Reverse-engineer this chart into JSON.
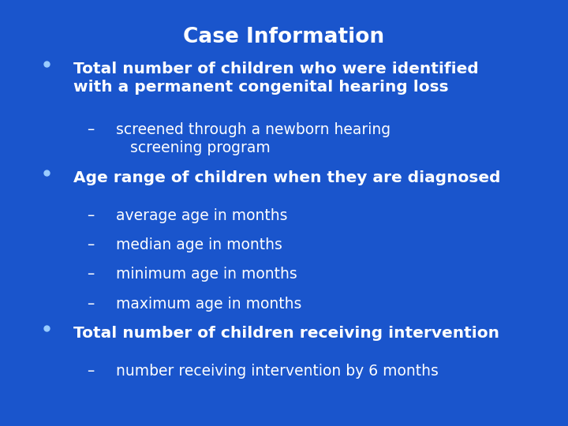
{
  "title": "Case Information",
  "background_color": "#1a6ed4",
  "outer_bg": "#1a55cc",
  "title_color": "#ffffff",
  "text_color": "#ffffff",
  "bullet_color": "#99ccff",
  "border_color_left": "#44ddee",
  "border_color_right": "#9977cc",
  "title_fontsize": 19,
  "body_fontsize": 14.5,
  "sub_fontsize": 13.5,
  "content": [
    {
      "type": "bullet",
      "text": "Total number of children who were identified\nwith a permanent congenital hearing loss",
      "bold": true
    },
    {
      "type": "sub",
      "text": "screened through a newborn hearing\n   screening program",
      "bold": false
    },
    {
      "type": "bullet",
      "text": "Age range of children when they are diagnosed",
      "bold": true
    },
    {
      "type": "sub",
      "text": "average age in months",
      "bold": false
    },
    {
      "type": "sub",
      "text": "median age in months",
      "bold": false
    },
    {
      "type": "sub",
      "text": "minimum age in months",
      "bold": false
    },
    {
      "type": "sub",
      "text": "maximum age in months",
      "bold": false
    },
    {
      "type": "bullet",
      "text": "Total number of children receiving intervention",
      "bold": true
    },
    {
      "type": "sub",
      "text": "number receiving intervention by 6 months",
      "bold": false
    }
  ]
}
